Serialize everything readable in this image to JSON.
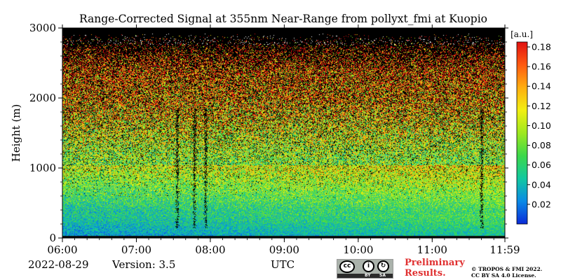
{
  "chart_data": {
    "type": "heatmap",
    "title": "Range-Corrected Signal at 355nm Near-Range from pollyxt_fmi at Kuopio",
    "xlabel": "",
    "ylabel": "Height (m)",
    "x_ticks": [
      "06:00",
      "07:00",
      "08:00",
      "09:00",
      "10:00",
      "11:00",
      "11:59"
    ],
    "x_range": [
      "06:00",
      "11:59"
    ],
    "y_ticks": [
      0,
      1000,
      2000,
      3000
    ],
    "ylim": [
      0,
      3000
    ],
    "colorbar": {
      "unit": "[a.u.]",
      "ticks": [
        0.02,
        0.04,
        0.06,
        0.08,
        0.1,
        0.12,
        0.14,
        0.16,
        0.18
      ],
      "tick_labels": [
        "0.02",
        "0.04",
        "0.06",
        "0.08",
        "0.10",
        "0.12",
        "0.14",
        "0.16",
        "0.18"
      ],
      "range": [
        0,
        0.185
      ],
      "colormap": [
        "#0a2ad8",
        "#0a8ae6",
        "#12c8a0",
        "#3cd84a",
        "#9ee81e",
        "#f2ef12",
        "#ffae10",
        "#ff5a10",
        "#e01010"
      ]
    },
    "noise_color": "#000000",
    "dark_columns_time": [
      "07:33",
      "07:47",
      "07:56",
      "11:40"
    ]
  },
  "footer": {
    "date": "2022-08-29",
    "version": "Version: 3.5",
    "utc": "UTC",
    "preliminary_line1": "Preliminary",
    "preliminary_line2": "Results.",
    "copyright_line1": "© TROPOS & FMI 2022.",
    "copyright_line2": "CC BY SA 4.0 License.",
    "cc_label_by": "BY",
    "cc_label_sa": "SA"
  }
}
